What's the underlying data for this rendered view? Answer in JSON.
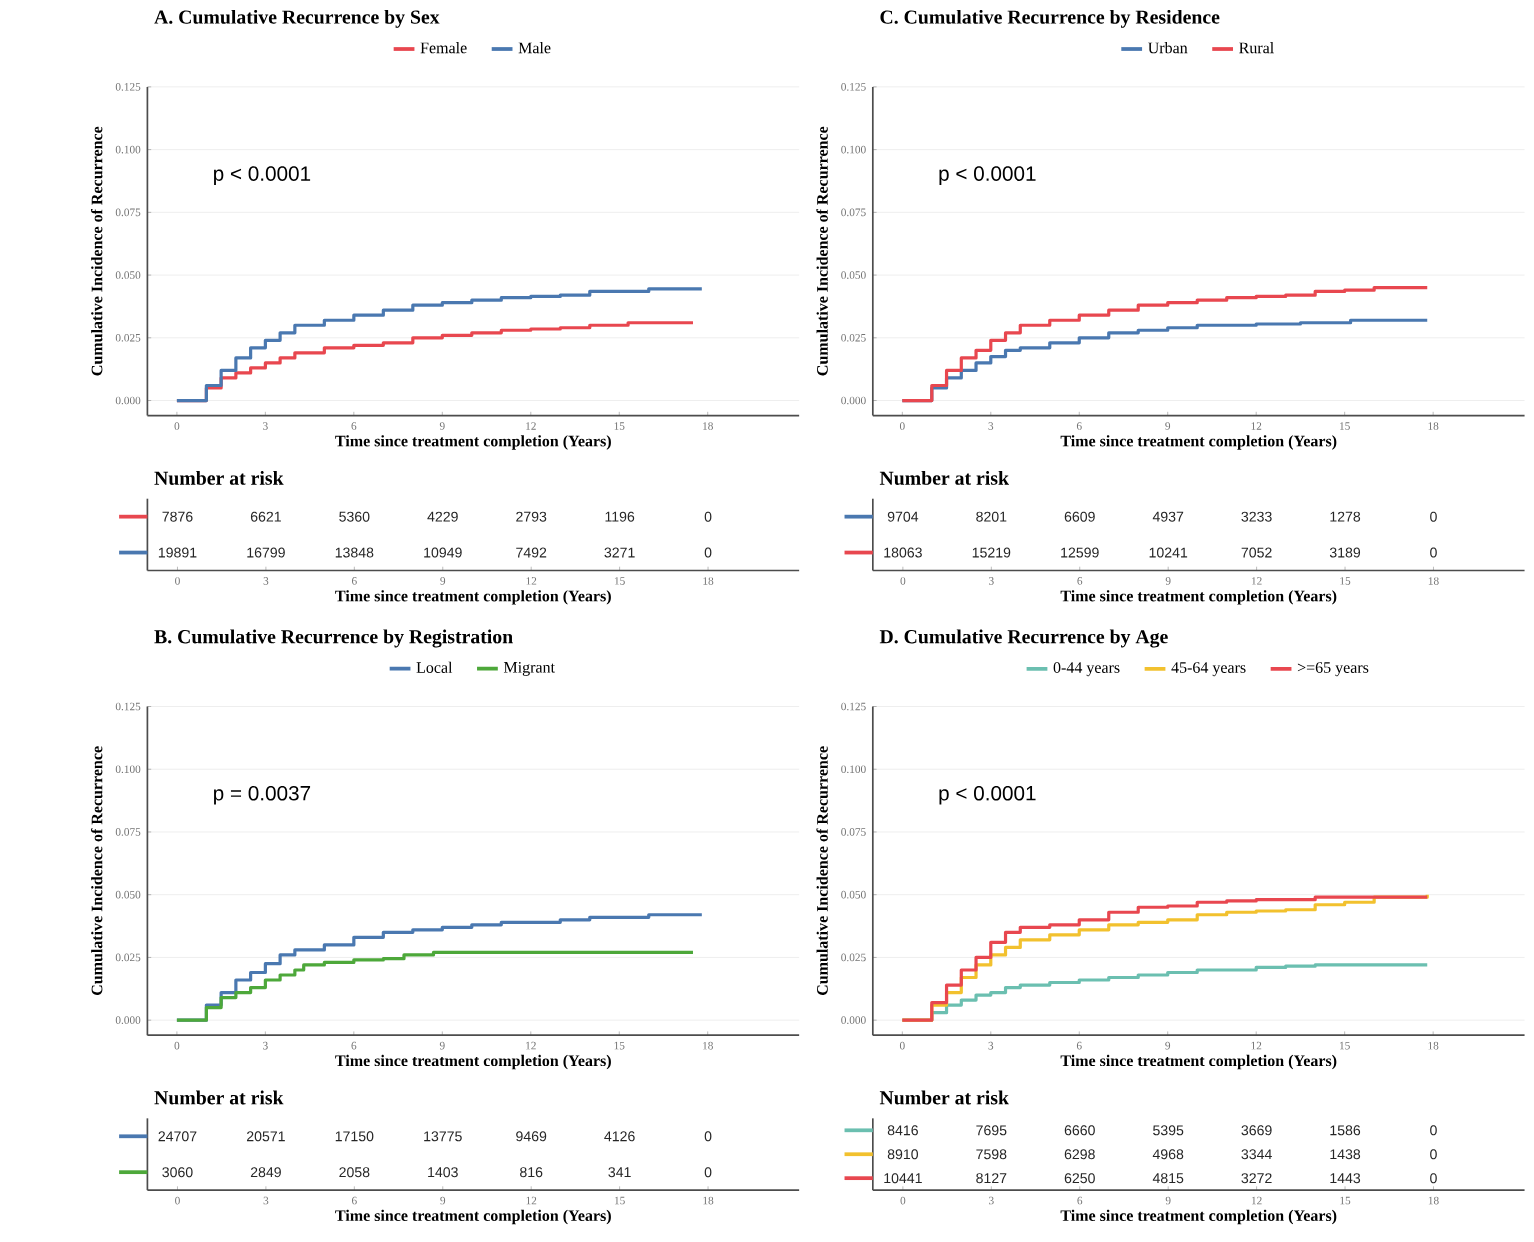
{
  "chart_data": [
    {
      "type": "step",
      "title": "A. Cumulative Recurrence by Sex",
      "xlabel": "Time since treatment completion (Years)",
      "ylabel": "Cumulative Incidence of Recurrence",
      "xlim": [
        -1,
        21.1
      ],
      "ylim": [
        -0.006,
        0.125
      ],
      "xticks": [
        0,
        3,
        6,
        9,
        12,
        15,
        18
      ],
      "yticks": [
        {
          "value": 0,
          "label": "0.000"
        },
        {
          "value": 0.025,
          "label": "0.025"
        },
        {
          "value": 0.05,
          "label": "0.050"
        },
        {
          "value": 0.075,
          "label": "0.075"
        },
        {
          "value": 0.1,
          "label": "0.100"
        },
        {
          "value": 0.125,
          "label": "0.125"
        }
      ],
      "grid": "y",
      "legend": "top",
      "annotations": [
        "p < 0.0001"
      ],
      "series": [
        {
          "name": "Female",
          "color": "#e8474f",
          "x": [
            0,
            0.5,
            1,
            1.5,
            2,
            2.5,
            3,
            3.5,
            4,
            5,
            6,
            7,
            8,
            9,
            10,
            11,
            12,
            13,
            14,
            15,
            15.3,
            17.5
          ],
          "values": [
            0,
            0,
            0.005,
            0.009,
            0.011,
            0.013,
            0.015,
            0.017,
            0.019,
            0.021,
            0.022,
            0.023,
            0.025,
            0.026,
            0.027,
            0.028,
            0.0285,
            0.029,
            0.03,
            0.03,
            0.031,
            0.031
          ]
        },
        {
          "name": "Male",
          "color": "#4a78b0",
          "x": [
            0,
            0.5,
            1,
            1.5,
            2,
            2.5,
            3,
            3.5,
            4,
            5,
            6,
            7,
            8,
            9,
            10,
            11,
            12,
            13,
            14,
            15,
            16,
            17.8
          ],
          "values": [
            0,
            0,
            0.006,
            0.012,
            0.017,
            0.021,
            0.024,
            0.027,
            0.03,
            0.032,
            0.034,
            0.036,
            0.038,
            0.039,
            0.04,
            0.041,
            0.0415,
            0.042,
            0.0435,
            0.0435,
            0.0445,
            0.0445
          ]
        }
      ]
    },
    {
      "type": "heatmap",
      "title": "Number at risk",
      "xlabel": "Time since treatment completion (Years)",
      "categories": [
        "0",
        "3",
        "6",
        "9",
        "12",
        "15",
        "18"
      ],
      "y_categories": [
        null,
        null
      ],
      "data_labels": true,
      "colors": [
        "#e8474f",
        "#4a78b0"
      ],
      "cells": [
        [
          7876,
          6621,
          5360,
          4229,
          2793,
          1196,
          0
        ],
        [
          19891,
          16799,
          13848,
          10949,
          7492,
          3271,
          0
        ]
      ]
    },
    {
      "type": "step",
      "title": "C. Cumulative Recurrence by Residence",
      "xlabel": "Time since treatment completion (Years)",
      "ylabel": "Cumulative Incidence of Recurrence",
      "xlim": [
        -1,
        21.1
      ],
      "ylim": [
        -0.006,
        0.125
      ],
      "xticks": [
        0,
        3,
        6,
        9,
        12,
        15,
        18
      ],
      "yticks": [
        {
          "value": 0,
          "label": "0.000"
        },
        {
          "value": 0.025,
          "label": "0.025"
        },
        {
          "value": 0.05,
          "label": "0.050"
        },
        {
          "value": 0.075,
          "label": "0.075"
        },
        {
          "value": 0.1,
          "label": "0.100"
        },
        {
          "value": 0.125,
          "label": "0.125"
        }
      ],
      "grid": "y",
      "legend": "top",
      "annotations": [
        "p < 0.0001"
      ],
      "series": [
        {
          "name": "Urban",
          "color": "#4a78b0",
          "x": [
            0,
            0.5,
            1,
            1.5,
            2,
            2.5,
            3,
            3.5,
            4,
            5,
            6,
            7,
            8,
            9,
            10,
            12,
            13.5,
            15.2,
            17.8
          ],
          "values": [
            0,
            0,
            0.005,
            0.009,
            0.012,
            0.015,
            0.0175,
            0.02,
            0.021,
            0.023,
            0.025,
            0.027,
            0.028,
            0.029,
            0.03,
            0.0305,
            0.031,
            0.032,
            0.032
          ]
        },
        {
          "name": "Rural",
          "color": "#e8474f",
          "x": [
            0,
            0.5,
            1,
            1.5,
            2,
            2.5,
            3,
            3.5,
            4,
            5,
            6,
            7,
            8,
            9,
            10,
            11,
            12,
            13,
            14,
            15,
            16,
            17.8
          ],
          "values": [
            0,
            0,
            0.006,
            0.012,
            0.017,
            0.02,
            0.024,
            0.027,
            0.03,
            0.032,
            0.034,
            0.036,
            0.038,
            0.039,
            0.04,
            0.041,
            0.0415,
            0.042,
            0.0435,
            0.044,
            0.045,
            0.045
          ]
        }
      ]
    },
    {
      "type": "heatmap",
      "title": "Number at risk",
      "xlabel": "Time since treatment completion (Years)",
      "categories": [
        "0",
        "3",
        "6",
        "9",
        "12",
        "15",
        "18"
      ],
      "y_categories": [
        null,
        null
      ],
      "data_labels": true,
      "colors": [
        "#4a78b0",
        "#e8474f"
      ],
      "cells": [
        [
          9704,
          8201,
          6609,
          4937,
          3233,
          1278,
          0
        ],
        [
          18063,
          15219,
          12599,
          10241,
          7052,
          3189,
          0
        ]
      ]
    },
    {
      "type": "step",
      "title": "B. Cumulative Recurrence by Registration",
      "xlabel": "Time since treatment completion (Years)",
      "ylabel": "Cumulative Incidence of Recurrence",
      "xlim": [
        -1,
        21.1
      ],
      "ylim": [
        -0.006,
        0.125
      ],
      "xticks": [
        0,
        3,
        6,
        9,
        12,
        15,
        18
      ],
      "yticks": [
        {
          "value": 0,
          "label": "0.000"
        },
        {
          "value": 0.025,
          "label": "0.025"
        },
        {
          "value": 0.05,
          "label": "0.050"
        },
        {
          "value": 0.075,
          "label": "0.075"
        },
        {
          "value": 0.1,
          "label": "0.100"
        },
        {
          "value": 0.125,
          "label": "0.125"
        }
      ],
      "grid": "y",
      "legend": "top",
      "annotations": [
        "p = 0.0037"
      ],
      "series": [
        {
          "name": "Local",
          "color": "#4a78b0",
          "x": [
            0,
            0.5,
            1,
            1.5,
            2,
            2.5,
            3,
            3.5,
            4,
            5,
            6,
            7,
            8,
            9,
            10,
            11,
            12,
            13,
            14,
            15,
            16,
            17.8
          ],
          "values": [
            0,
            0,
            0.006,
            0.011,
            0.016,
            0.019,
            0.0225,
            0.026,
            0.028,
            0.03,
            0.033,
            0.035,
            0.036,
            0.037,
            0.038,
            0.039,
            0.039,
            0.04,
            0.041,
            0.041,
            0.042,
            0.042
          ]
        },
        {
          "name": "Migrant",
          "color": "#4da83a",
          "x": [
            0,
            0.5,
            1,
            1.5,
            2,
            2.5,
            3,
            3.5,
            4,
            4.3,
            5,
            6,
            7,
            7.7,
            8.7,
            17.5
          ],
          "values": [
            0,
            0,
            0.005,
            0.009,
            0.011,
            0.013,
            0.016,
            0.018,
            0.02,
            0.022,
            0.023,
            0.024,
            0.0245,
            0.026,
            0.027,
            0.027
          ]
        }
      ]
    },
    {
      "type": "heatmap",
      "title": "Number at risk",
      "xlabel": "Time since treatment completion (Years)",
      "categories": [
        "0",
        "3",
        "6",
        "9",
        "12",
        "15",
        "18"
      ],
      "y_categories": [
        null,
        null
      ],
      "data_labels": true,
      "colors": [
        "#4a78b0",
        "#4da83a"
      ],
      "cells": [
        [
          24707,
          20571,
          17150,
          13775,
          9469,
          4126,
          0
        ],
        [
          3060,
          2849,
          2058,
          1403,
          816,
          341,
          0
        ]
      ]
    },
    {
      "type": "step",
      "title": "D. Cumulative Recurrence by Age",
      "xlabel": "Time since treatment completion (Years)",
      "ylabel": "Cumulative Incidence of Recurrence",
      "xlim": [
        -1,
        21.1
      ],
      "ylim": [
        -0.006,
        0.125
      ],
      "xticks": [
        0,
        3,
        6,
        9,
        12,
        15,
        18
      ],
      "yticks": [
        {
          "value": 0,
          "label": "0.000"
        },
        {
          "value": 0.025,
          "label": "0.025"
        },
        {
          "value": 0.05,
          "label": "0.050"
        },
        {
          "value": 0.075,
          "label": "0.075"
        },
        {
          "value": 0.1,
          "label": "0.100"
        },
        {
          "value": 0.125,
          "label": "0.125"
        }
      ],
      "grid": "y",
      "legend": "top",
      "annotations": [
        "p < 0.0001"
      ],
      "series": [
        {
          "name": "0-44 years",
          "color": "#6bbfb0",
          "x": [
            0,
            0.5,
            1,
            1.5,
            2,
            2.5,
            3,
            3.5,
            4,
            5,
            6,
            7,
            8,
            9,
            10,
            12,
            13,
            14,
            17.8
          ],
          "values": [
            0,
            0,
            0.003,
            0.006,
            0.008,
            0.01,
            0.011,
            0.013,
            0.014,
            0.015,
            0.016,
            0.017,
            0.018,
            0.019,
            0.02,
            0.021,
            0.0215,
            0.022,
            0.022
          ]
        },
        {
          "name": "45-64 years",
          "color": "#f2c12e",
          "x": [
            0,
            0.5,
            1,
            1.5,
            2,
            2.5,
            3,
            3.5,
            4,
            5,
            6,
            7,
            8,
            9,
            10,
            11,
            12,
            13,
            14,
            15,
            16,
            17.8
          ],
          "values": [
            0,
            0,
            0.006,
            0.011,
            0.017,
            0.022,
            0.026,
            0.029,
            0.032,
            0.034,
            0.036,
            0.038,
            0.039,
            0.04,
            0.042,
            0.043,
            0.0435,
            0.044,
            0.046,
            0.047,
            0.049,
            0.05
          ]
        },
        {
          "name": ">=65 years",
          "color": "#e8474f",
          "x": [
            0,
            0.5,
            1,
            1.5,
            2,
            2.5,
            3,
            3.5,
            4,
            5,
            6,
            7,
            8,
            9,
            10,
            11,
            12,
            13,
            14,
            17.8
          ],
          "values": [
            0,
            0,
            0.007,
            0.014,
            0.02,
            0.025,
            0.031,
            0.035,
            0.037,
            0.038,
            0.04,
            0.043,
            0.045,
            0.0455,
            0.047,
            0.0475,
            0.048,
            0.048,
            0.049,
            0.049
          ]
        }
      ]
    },
    {
      "type": "heatmap",
      "title": "Number at risk",
      "xlabel": "Time since treatment completion (Years)",
      "categories": [
        "0",
        "3",
        "6",
        "9",
        "12",
        "15",
        "18"
      ],
      "y_categories": [
        null,
        null,
        null
      ],
      "data_labels": true,
      "colors": [
        "#6bbfb0",
        "#f2c12e",
        "#e8474f"
      ],
      "cells": [
        [
          8416,
          7695,
          6660,
          5395,
          3669,
          1586,
          0
        ],
        [
          8910,
          7598,
          6298,
          4968,
          3344,
          1438,
          0
        ],
        [
          10441,
          8127,
          6250,
          4815,
          3272,
          1443,
          0
        ]
      ]
    }
  ]
}
